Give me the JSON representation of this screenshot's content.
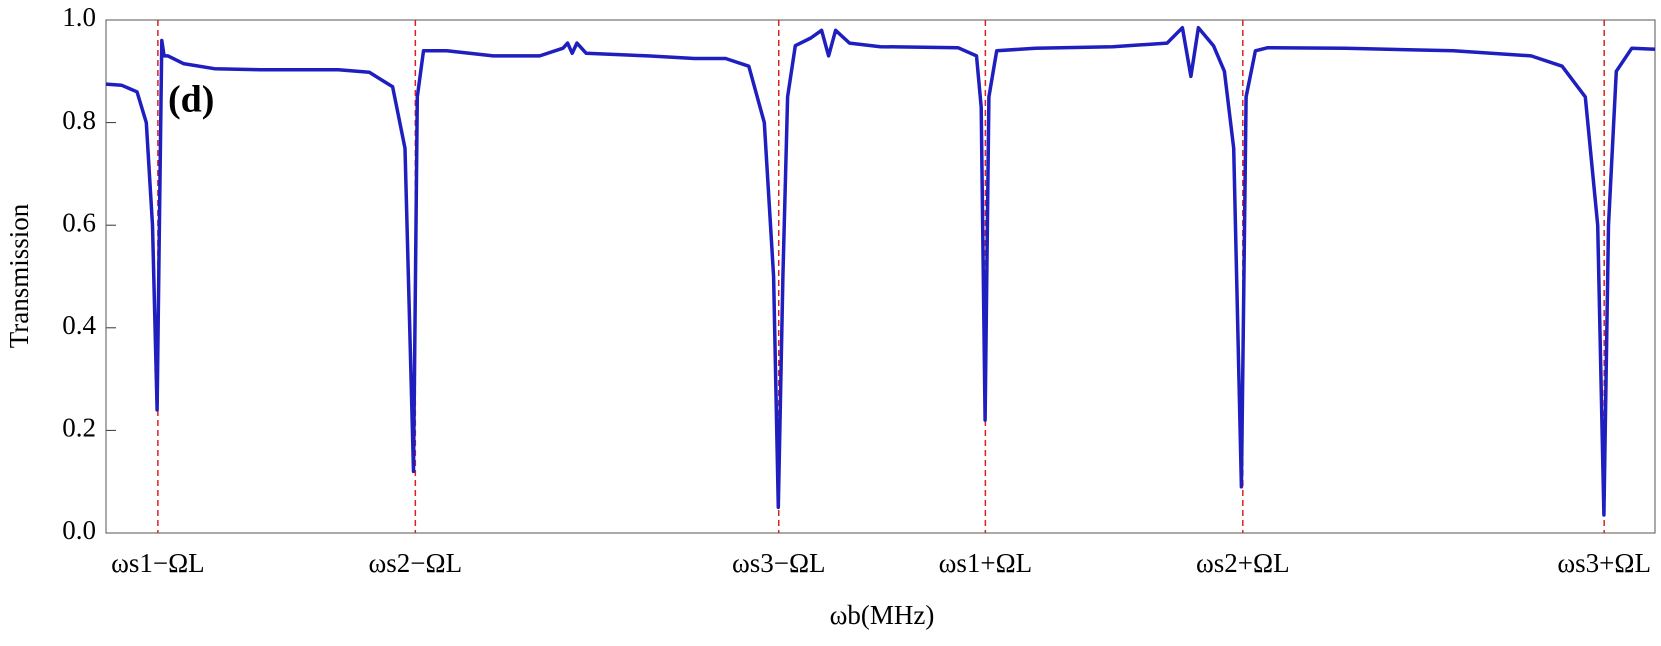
{
  "chart_data": {
    "type": "line",
    "annotation": "(d)",
    "x_label": "ωb(MHz)",
    "y_label": "Transmission",
    "color": "#1f1fbf",
    "marker_color": "#e02020",
    "xlim": [
      0,
      100
    ],
    "ylim": [
      0,
      1
    ],
    "xticks": [
      {
        "value": 3.35,
        "label": "ωs1−ΩL"
      },
      {
        "value": 19.97,
        "label": "ωs2−ΩL"
      },
      {
        "value": 43.43,
        "label": "ωs3−ΩL"
      },
      {
        "value": 56.77,
        "label": "ωs1+ΩL"
      },
      {
        "value": 73.39,
        "label": "ωs2+ΩL"
      },
      {
        "value": 96.72,
        "label": "ωs3+ΩL"
      }
    ],
    "yticks": [
      {
        "value": 0,
        "label": "0.0"
      },
      0.2,
      0.4,
      0.6,
      0.8,
      {
        "value": 1,
        "label": "1.0"
      }
    ],
    "x": [
      0,
      1,
      2,
      2.6,
      3.0,
      3.3,
      3.45,
      3.6,
      3.75,
      4,
      5,
      7,
      10,
      15,
      17,
      18.5,
      19.3,
      19.85,
      20.1,
      20.5,
      22,
      25,
      28,
      29.5,
      29.8,
      30.1,
      30.4,
      31,
      35,
      38,
      40,
      41.5,
      42.5,
      43.1,
      43.4,
      43.7,
      44.0,
      44.5,
      45.5,
      46.2,
      46.65,
      47.1,
      48,
      50,
      55,
      56.2,
      56.5,
      56.75,
      57,
      57.5,
      60,
      65,
      68.5,
      69.49,
      70.04,
      70.52,
      71.5,
      72.2,
      72.8,
      73.3,
      73.6,
      74.2,
      75,
      80,
      87,
      92,
      94,
      95.5,
      96.3,
      96.7,
      97.0,
      97.5,
      98.5,
      100
    ],
    "values": [
      0.875,
      0.873,
      0.86,
      0.8,
      0.6,
      0.24,
      0.6,
      0.96,
      0.93,
      0.93,
      0.915,
      0.905,
      0.903,
      0.903,
      0.898,
      0.87,
      0.75,
      0.12,
      0.85,
      0.94,
      0.94,
      0.93,
      0.93,
      0.945,
      0.955,
      0.935,
      0.955,
      0.935,
      0.93,
      0.925,
      0.925,
      0.91,
      0.8,
      0.5,
      0.05,
      0.5,
      0.85,
      0.95,
      0.965,
      0.98,
      0.93,
      0.98,
      0.955,
      0.948,
      0.946,
      0.93,
      0.83,
      0.22,
      0.85,
      0.94,
      0.945,
      0.948,
      0.955,
      0.985,
      0.89,
      0.985,
      0.95,
      0.9,
      0.75,
      0.09,
      0.85,
      0.94,
      0.946,
      0.945,
      0.94,
      0.93,
      0.91,
      0.85,
      0.6,
      0.035,
      0.6,
      0.9,
      0.945,
      0.943
    ]
  }
}
